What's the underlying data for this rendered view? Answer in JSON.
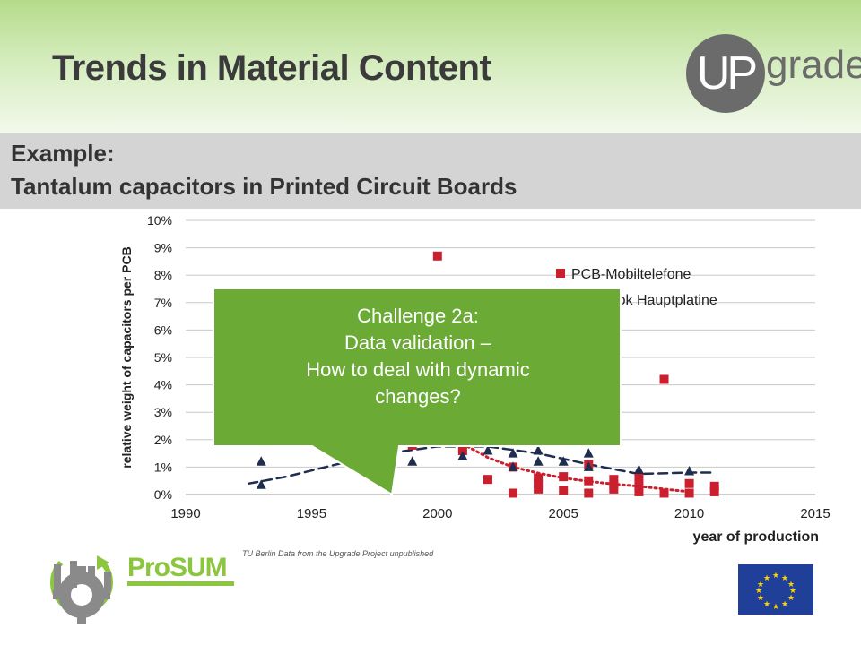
{
  "header": {
    "title": "Trends in Material Content",
    "logo_up": "UP",
    "logo_grade": "grade"
  },
  "example": {
    "line1": "Example:",
    "line2": "Tantalum capacitors in Printed Circuit Boards"
  },
  "callout": {
    "lines": [
      "Challenge 2a:",
      "Data validation –",
      "How to deal with dynamic",
      "changes?"
    ],
    "color": "#6aaa35"
  },
  "source_note": "TU Berlin Data from the Upgrade Project unpublished",
  "footer": {
    "prosum_label": "ProSUM"
  },
  "chart_data": {
    "type": "scatter",
    "xlabel": "year of production",
    "ylabel": "relative weight of capacitors per PCB",
    "xlim": [
      1990,
      2015
    ],
    "ylim": [
      0,
      10
    ],
    "x_ticks": [
      "1990",
      "1995",
      "2000",
      "2005",
      "2010",
      "2015"
    ],
    "y_ticks": [
      "0%",
      "1%",
      "2%",
      "3%",
      "4%",
      "5%",
      "6%",
      "7%",
      "8%",
      "9%",
      "10%"
    ],
    "grid": "horizontal",
    "legend_position": "top-right",
    "series": [
      {
        "name": "PCB-Mobiltelefone",
        "marker": "square",
        "color": "#cc1f2e",
        "points": [
          [
            1999,
            1.8
          ],
          [
            2000,
            8.7
          ],
          [
            2001,
            1.6
          ],
          [
            2002,
            0.55
          ],
          [
            2003,
            1.0
          ],
          [
            2003,
            0.05
          ],
          [
            2004,
            0.6
          ],
          [
            2004,
            0.4
          ],
          [
            2004,
            0.2
          ],
          [
            2005,
            0.65
          ],
          [
            2005,
            0.15
          ],
          [
            2006,
            1.1
          ],
          [
            2006,
            0.5
          ],
          [
            2006,
            0.05
          ],
          [
            2007,
            0.55
          ],
          [
            2007,
            0.35
          ],
          [
            2007,
            0.2
          ],
          [
            2008,
            0.6
          ],
          [
            2008,
            0.3
          ],
          [
            2008,
            0.1
          ],
          [
            2009,
            4.2
          ],
          [
            2009,
            0.05
          ],
          [
            2010,
            0.4
          ],
          [
            2010,
            0.05
          ],
          [
            2011,
            0.3
          ],
          [
            2011,
            0.1
          ]
        ]
      },
      {
        "name": "Notebook Hauptplatine",
        "marker": "triangle",
        "color": "#1f2d4f",
        "points": [
          [
            1993,
            1.2
          ],
          [
            1993,
            0.35
          ],
          [
            1998,
            0.9
          ],
          [
            1999,
            1.2
          ],
          [
            2001,
            1.4
          ],
          [
            2002,
            1.6
          ],
          [
            2003,
            1.5
          ],
          [
            2003,
            1.0
          ],
          [
            2004,
            1.6
          ],
          [
            2004,
            1.2
          ],
          [
            2005,
            1.2
          ],
          [
            2006,
            1.5
          ],
          [
            2006,
            1.0
          ],
          [
            2008,
            0.9
          ],
          [
            2010,
            0.85
          ]
        ]
      }
    ],
    "trendlines": [
      {
        "series": "Notebook Hauptplatine",
        "style": "dashed",
        "color": "#1f2d4f",
        "points": [
          [
            1992.5,
            0.4
          ],
          [
            1994,
            0.65
          ],
          [
            1996,
            1.1
          ],
          [
            1998,
            1.5
          ],
          [
            2000,
            1.75
          ],
          [
            2002,
            1.75
          ],
          [
            2004,
            1.5
          ],
          [
            2006,
            1.1
          ],
          [
            2008,
            0.75
          ],
          [
            2010,
            0.8
          ],
          [
            2011,
            0.8
          ]
        ]
      },
      {
        "series": "PCB-Mobiltelefone",
        "style": "dotted",
        "color": "#cc1f2e",
        "points": [
          [
            2001,
            1.85
          ],
          [
            2002,
            1.35
          ],
          [
            2003,
            1.0
          ],
          [
            2004,
            0.78
          ],
          [
            2005,
            0.6
          ],
          [
            2006,
            0.48
          ],
          [
            2007,
            0.38
          ],
          [
            2008,
            0.3
          ],
          [
            2009,
            0.2
          ],
          [
            2010,
            0.1
          ]
        ]
      }
    ]
  }
}
